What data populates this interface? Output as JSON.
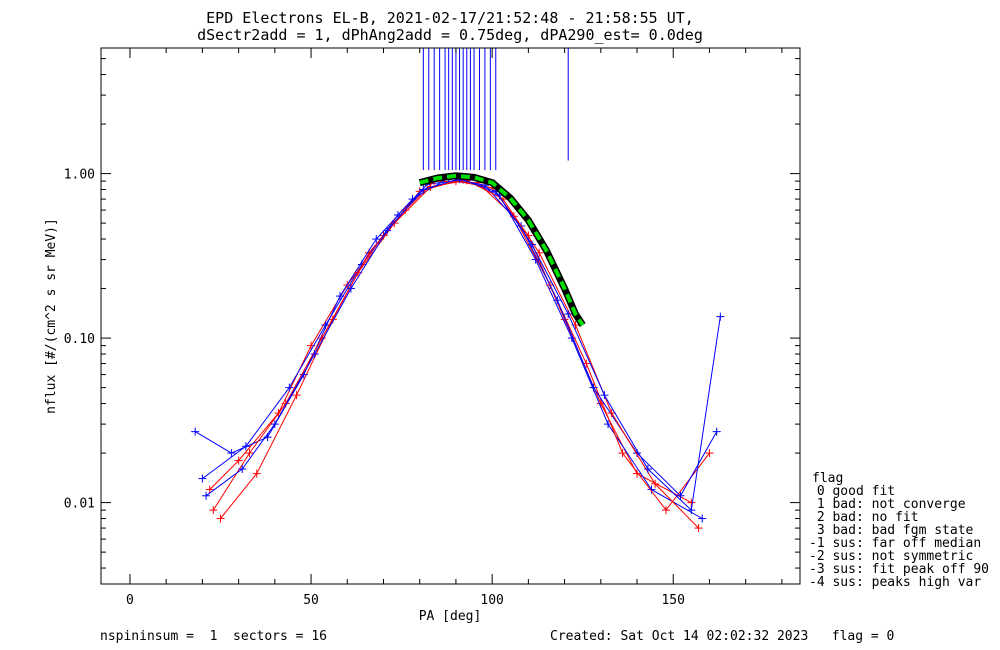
{
  "chart_data": {
    "type": "scatter",
    "title": "EPD Electrons EL-B, 2021-02-17/21:52:48 - 21:58:55 UT,",
    "subtitle": "dSectr2add = 1, dPhAng2add = 0.75deg, dPA290_est=   0.0deg",
    "xlabel": "PA [deg]",
    "ylabel": "nflux [#/(cm^2 s sr MeV)]",
    "xlim": [
      -8,
      185
    ],
    "ylim": [
      0.0032,
      5.8
    ],
    "yscale": "log",
    "x_ticks": [
      0,
      50,
      100,
      150
    ],
    "x_tick_labels": [
      "0",
      "50",
      "100",
      "150"
    ],
    "y_ticks": [
      0.01,
      0.1,
      1.0
    ],
    "y_tick_labels": [
      "0.01",
      "0.10",
      "1.00"
    ],
    "colors": {
      "series_a": "#ff0000",
      "series_b": "#0000ff",
      "fit": "#00dd00",
      "fit_outline": "#000000"
    },
    "series": [
      {
        "color": "#ff0000",
        "points": [
          [
            22,
            0.012
          ],
          [
            30,
            0.018
          ],
          [
            41,
            0.035
          ],
          [
            50,
            0.09
          ],
          [
            60,
            0.21
          ],
          [
            70,
            0.42
          ],
          [
            80,
            0.78
          ],
          [
            90,
            0.9
          ],
          [
            100,
            0.82
          ],
          [
            110,
            0.42
          ],
          [
            120,
            0.13
          ],
          [
            130,
            0.04
          ],
          [
            140,
            0.015
          ],
          [
            155,
            0.01
          ]
        ]
      },
      {
        "color": "#0000ff",
        "points": [
          [
            20,
            0.014
          ],
          [
            32,
            0.022
          ],
          [
            44,
            0.05
          ],
          [
            54,
            0.12
          ],
          [
            64,
            0.28
          ],
          [
            74,
            0.56
          ],
          [
            82,
            0.86
          ],
          [
            92,
            0.92
          ],
          [
            102,
            0.74
          ],
          [
            112,
            0.3
          ],
          [
            122,
            0.1
          ],
          [
            132,
            0.03
          ],
          [
            144,
            0.012
          ],
          [
            158,
            0.008
          ]
        ]
      },
      {
        "color": "#ff0000",
        "points": [
          [
            25,
            0.008
          ],
          [
            35,
            0.015
          ],
          [
            46,
            0.045
          ],
          [
            56,
            0.13
          ],
          [
            66,
            0.33
          ],
          [
            76,
            0.6
          ],
          [
            84,
            0.9
          ],
          [
            96,
            0.88
          ],
          [
            106,
            0.55
          ],
          [
            116,
            0.21
          ],
          [
            126,
            0.07
          ],
          [
            136,
            0.02
          ],
          [
            148,
            0.009
          ],
          [
            160,
            0.02
          ]
        ]
      },
      {
        "color": "#0000ff",
        "points": [
          [
            18,
            0.027
          ],
          [
            28,
            0.02
          ],
          [
            38,
            0.025
          ],
          [
            48,
            0.06
          ],
          [
            58,
            0.18
          ],
          [
            68,
            0.4
          ],
          [
            78,
            0.7
          ],
          [
            88,
            0.94
          ],
          [
            98,
            0.85
          ],
          [
            108,
            0.48
          ],
          [
            118,
            0.17
          ],
          [
            128,
            0.05
          ],
          [
            140,
            0.02
          ],
          [
            152,
            0.011
          ],
          [
            162,
            0.027
          ]
        ]
      },
      {
        "color": "#ff0000",
        "points": [
          [
            23,
            0.009
          ],
          [
            33,
            0.02
          ],
          [
            43,
            0.04
          ],
          [
            53,
            0.1
          ],
          [
            63,
            0.25
          ],
          [
            73,
            0.5
          ],
          [
            83,
            0.83
          ],
          [
            93,
            0.91
          ],
          [
            103,
            0.7
          ],
          [
            113,
            0.33
          ],
          [
            123,
            0.12
          ],
          [
            133,
            0.035
          ],
          [
            145,
            0.013
          ],
          [
            157,
            0.007
          ]
        ]
      },
      {
        "color": "#0000ff",
        "points": [
          [
            21,
            0.011
          ],
          [
            31,
            0.016
          ],
          [
            40,
            0.03
          ],
          [
            51,
            0.08
          ],
          [
            61,
            0.2
          ],
          [
            71,
            0.45
          ],
          [
            81,
            0.8
          ],
          [
            91,
            0.93
          ],
          [
            101,
            0.78
          ],
          [
            111,
            0.37
          ],
          [
            121,
            0.14
          ],
          [
            131,
            0.045
          ],
          [
            143,
            0.016
          ],
          [
            155,
            0.009
          ],
          [
            163,
            0.135
          ]
        ]
      }
    ],
    "spikes_x": [
      81,
      82.5,
      84,
      85.5,
      87,
      88,
      89,
      90,
      91,
      92,
      93,
      94,
      95,
      96.5,
      98,
      99.5,
      101,
      121
    ],
    "fit_curve": [
      [
        80,
        0.88
      ],
      [
        85,
        0.94
      ],
      [
        90,
        0.97
      ],
      [
        95,
        0.95
      ],
      [
        100,
        0.88
      ],
      [
        105,
        0.71
      ],
      [
        110,
        0.52
      ],
      [
        115,
        0.34
      ],
      [
        120,
        0.2
      ],
      [
        123,
        0.14
      ],
      [
        125,
        0.12
      ]
    ],
    "legend_title": "flag",
    "legend_entries": [
      " 0 good fit",
      " 1 bad: not converge",
      " 2 bad: no fit",
      " 3 bad: bad fgm state",
      "-1 sus: far off median",
      "-2 sus: not symmetric",
      "-3 sus: fit peak off 90",
      "-4 sus: peaks high var"
    ],
    "legend_placement": "right"
  },
  "footer": {
    "left": "nspininsum =  1  sectors = 16",
    "right": "Created: Sat Oct 14 02:02:32 2023   flag = 0"
  }
}
